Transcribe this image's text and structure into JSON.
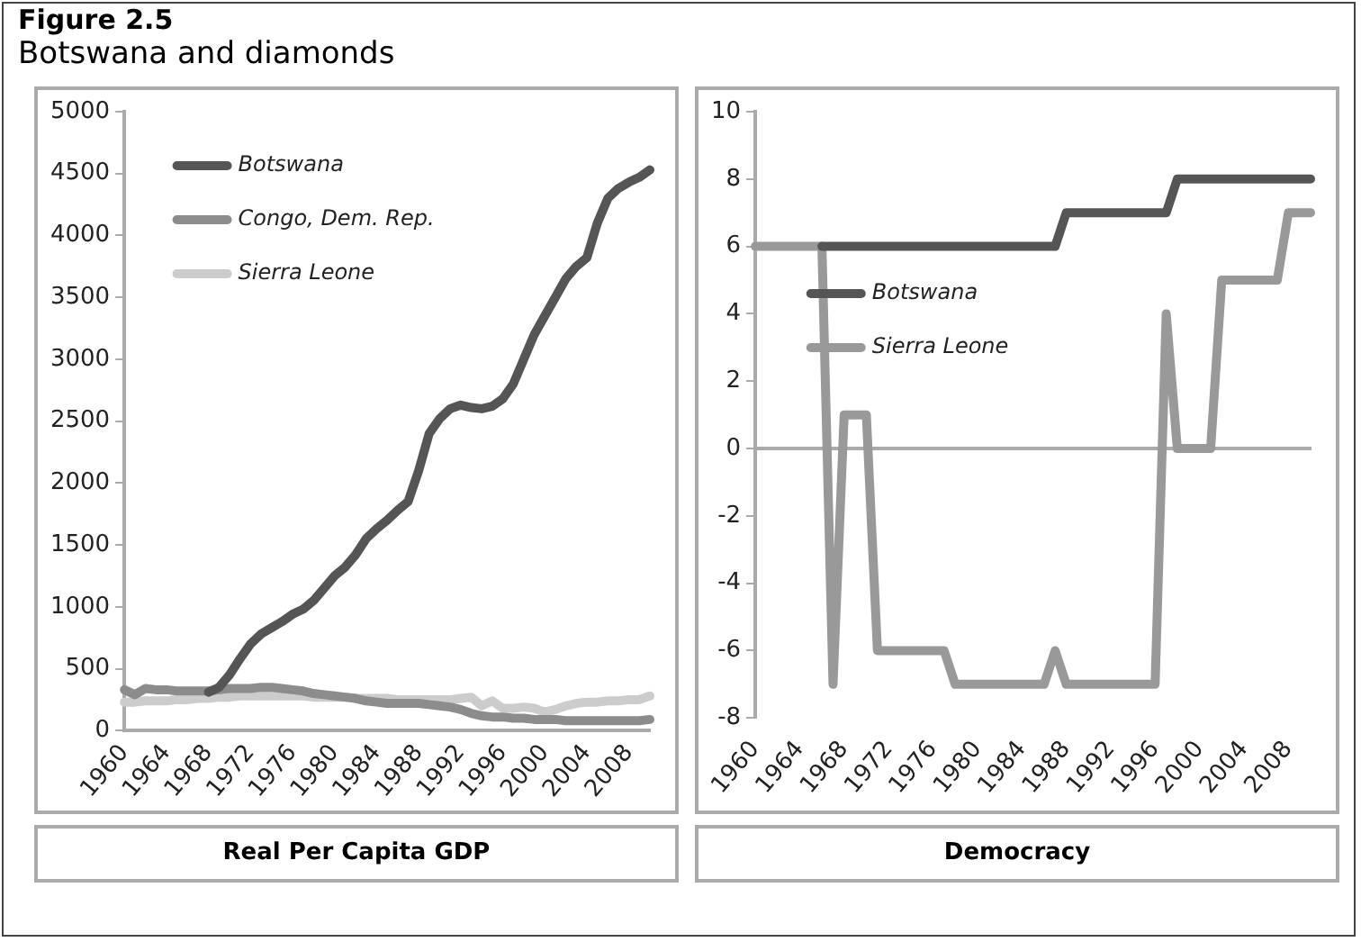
{
  "chart_data": [
    {
      "type": "line",
      "title": "Figure 2.5",
      "subtitle": "Botswana and diamonds",
      "xlabel": "Real Per Capita GDP",
      "marker": "none",
      "legend": "top left",
      "categories": [
        "1960",
        null,
        null,
        null,
        "1964",
        null,
        null,
        null,
        "1968",
        null,
        null,
        null,
        "1972",
        null,
        null,
        null,
        "1976",
        null,
        null,
        null,
        "1980",
        null,
        null,
        null,
        "1984",
        null,
        null,
        null,
        "1988",
        null,
        null,
        null,
        "1992",
        null,
        null,
        null,
        "1996",
        null,
        null,
        null,
        "2000",
        null,
        null,
        null,
        "2004",
        null,
        null,
        null,
        "2008",
        null,
        null
      ],
      "ylim": [
        0,
        5000
      ],
      "yticks": [
        0,
        500,
        1000,
        1500,
        2000,
        2500,
        3000,
        3500,
        4000,
        4500,
        5000
      ],
      "series": [
        {
          "name": "Botswana",
          "color": "#555555",
          "values": [
            null,
            null,
            null,
            null,
            null,
            null,
            null,
            null,
            310,
            350,
            450,
            580,
            700,
            780,
            830,
            880,
            940,
            980,
            1050,
            1150,
            1250,
            1320,
            1420,
            1550,
            1630,
            1700,
            1780,
            1850,
            2100,
            2400,
            2520,
            2600,
            2630,
            2610,
            2600,
            2620,
            2680,
            2800,
            3000,
            3200,
            3350,
            3500,
            3650,
            3750,
            3820,
            4100,
            4300,
            4380,
            4430,
            4470,
            4530
          ]
        },
        {
          "name": "Congo, Dem. Rep.",
          "color": "#8c8c8c",
          "values": [
            330,
            290,
            340,
            330,
            330,
            320,
            320,
            320,
            320,
            330,
            340,
            340,
            340,
            350,
            350,
            340,
            330,
            320,
            300,
            290,
            280,
            270,
            260,
            240,
            230,
            220,
            220,
            220,
            220,
            210,
            200,
            190,
            170,
            140,
            120,
            110,
            110,
            100,
            100,
            90,
            90,
            90,
            80,
            80,
            80,
            80,
            80,
            80,
            80,
            80,
            90
          ]
        },
        {
          "name": "Sierra Leone",
          "color": "#cccccc",
          "values": [
            230,
            230,
            240,
            240,
            240,
            250,
            250,
            260,
            260,
            270,
            270,
            280,
            280,
            280,
            280,
            280,
            280,
            280,
            270,
            270,
            270,
            270,
            260,
            260,
            260,
            260,
            250,
            250,
            250,
            250,
            250,
            250,
            260,
            270,
            200,
            240,
            180,
            180,
            190,
            180,
            150,
            170,
            200,
            220,
            230,
            230,
            240,
            240,
            250,
            250,
            280
          ]
        }
      ]
    },
    {
      "type": "line",
      "xlabel": "Democracy",
      "marker": "none",
      "legend": "left",
      "categories": [
        "1960",
        null,
        null,
        null,
        "1964",
        null,
        null,
        null,
        "1968",
        null,
        null,
        null,
        "1972",
        null,
        null,
        null,
        "1976",
        null,
        null,
        null,
        "1980",
        null,
        null,
        null,
        "1984",
        null,
        null,
        null,
        "1988",
        null,
        null,
        null,
        "1992",
        null,
        null,
        null,
        "1996",
        null,
        null,
        null,
        "2000",
        null,
        null,
        null,
        "2004",
        null,
        null,
        null,
        "2008",
        null,
        null
      ],
      "ylim": [
        -8,
        10
      ],
      "yticks": [
        -8,
        -6,
        -4,
        -2,
        0,
        2,
        4,
        6,
        8,
        10
      ],
      "series": [
        {
          "name": "Botswana",
          "color": "#555555",
          "values": [
            null,
            null,
            null,
            null,
            null,
            null,
            6,
            6,
            6,
            6,
            6,
            6,
            6,
            6,
            6,
            6,
            6,
            6,
            6,
            6,
            6,
            6,
            6,
            6,
            6,
            6,
            6,
            6,
            7,
            7,
            7,
            7,
            7,
            7,
            7,
            7,
            7,
            7,
            8,
            8,
            8,
            8,
            8,
            8,
            8,
            8,
            8,
            8,
            8,
            8,
            8
          ]
        },
        {
          "name": "Sierra Leone",
          "color": "#999999",
          "values": [
            6,
            6,
            6,
            6,
            6,
            6,
            6,
            -7,
            1,
            1,
            1,
            -6,
            -6,
            -6,
            -6,
            -6,
            -6,
            -6,
            -7,
            -7,
            -7,
            -7,
            -7,
            -7,
            -7,
            -7,
            -7,
            -6,
            -7,
            -7,
            -7,
            -7,
            -7,
            -7,
            -7,
            -7,
            -7,
            4,
            0,
            0,
            0,
            0,
            5,
            5,
            5,
            5,
            5,
            5,
            7,
            7,
            7
          ]
        }
      ]
    }
  ]
}
